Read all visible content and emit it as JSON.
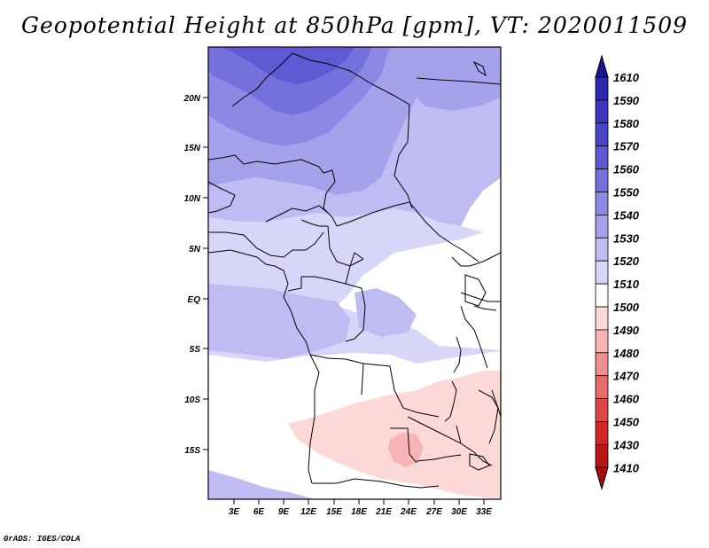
{
  "title": "Geopotential Height at 850hPa [gpm], VT: 2020011509",
  "credit": "GrADS: IGES/COLA",
  "map": {
    "lat_labels": [
      "20N",
      "15N",
      "10N",
      "5N",
      "EQ",
      "5S",
      "10S",
      "15S"
    ],
    "lon_labels": [
      "3E",
      "6E",
      "9E",
      "12E",
      "15E",
      "18E",
      "21E",
      "24E",
      "27E",
      "30E",
      "33E"
    ]
  },
  "colorbar": {
    "levels": [
      "1610",
      "1590",
      "1580",
      "1570",
      "1560",
      "1550",
      "1540",
      "1530",
      "1520",
      "1510",
      "1500",
      "1490",
      "1480",
      "1470",
      "1460",
      "1450",
      "1430",
      "1410"
    ],
    "colors": [
      "#1e1496",
      "#2d28ad",
      "#3c37bd",
      "#4b46c9",
      "#5f5ad4",
      "#7570dc",
      "#8c88e4",
      "#a5a2eb",
      "#bebcf2",
      "#d8d6f8",
      "#ffffff",
      "#fcd8d8",
      "#f7b4b4",
      "#ef9090",
      "#e66c6c",
      "#dc4848",
      "#d02828",
      "#bb1414",
      "#a50f0f"
    ]
  },
  "colors": {
    "background": "#ffffff",
    "border": "#000000"
  }
}
